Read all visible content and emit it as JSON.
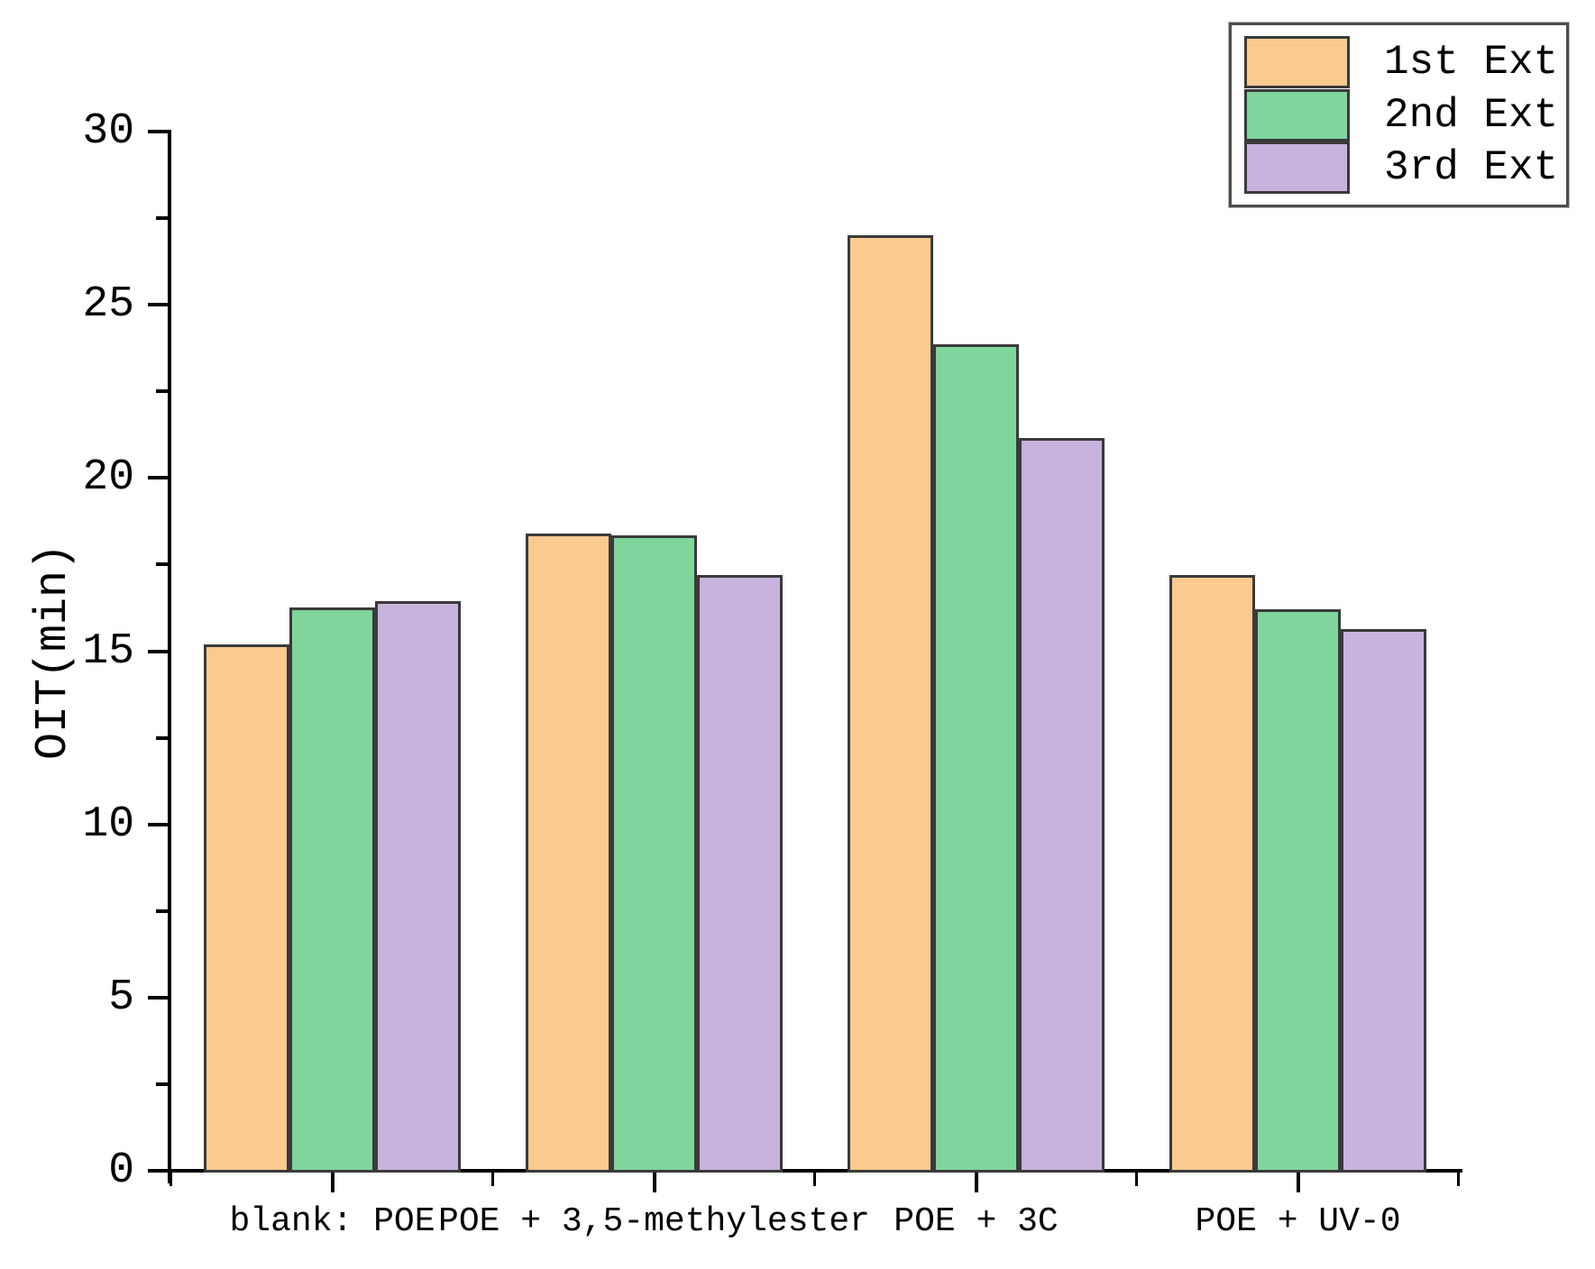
{
  "chart_data": {
    "type": "bar",
    "title": "",
    "xlabel": "",
    "ylabel": "OIT(min)",
    "categories": [
      "blank: POE",
      "POE + 3,5-methylester",
      "POE + 3C",
      "POE + UV-0"
    ],
    "series": [
      {
        "name": "1st Ext",
        "color": "#FBCA8E",
        "values": [
          15.2,
          18.4,
          27.0,
          17.2
        ]
      },
      {
        "name": "2nd Ext",
        "color": "#7FD59C",
        "values": [
          16.25,
          18.35,
          23.85,
          16.2
        ]
      },
      {
        "name": "3rd Ext",
        "color": "#C7B3DD",
        "values": [
          16.45,
          17.2,
          21.15,
          15.65
        ]
      }
    ],
    "ylim": [
      0,
      30
    ],
    "yticks": [
      0,
      5,
      10,
      15,
      20,
      25,
      30
    ],
    "ytick_minor_step": 2.5,
    "grid": false,
    "legend_position": "top-right",
    "bar_border_color": "#3A3A3A",
    "axis_color": "#000000"
  }
}
